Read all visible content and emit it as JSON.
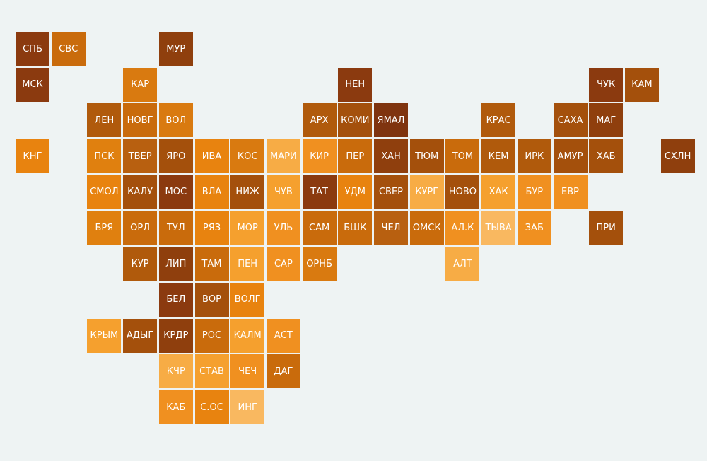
{
  "tiles": [
    {
      "label": "СПБ",
      "color": "#8b3a0f"
    },
    {
      "label": "СВС",
      "color": "#c96b0c"
    },
    {
      "label": "МУР",
      "color": "#8f3f0d"
    },
    {
      "label": "МСК",
      "color": "#8b3a0f"
    },
    {
      "label": "КАР",
      "color": "#d97a10"
    },
    {
      "label": "НЕН",
      "color": "#8b3a0f"
    },
    {
      "label": "ЧУК",
      "color": "#8b3a0f"
    },
    {
      "label": "КАМ",
      "color": "#a4500c"
    },
    {
      "label": "ЛЕН",
      "color": "#b05a0c"
    },
    {
      "label": "НОВГ",
      "color": "#c96b0c"
    },
    {
      "label": "ВОЛ",
      "color": "#d97a10"
    },
    {
      "label": "АРХ",
      "color": "#b05a0c"
    },
    {
      "label": "КОМИ",
      "color": "#a4500c"
    },
    {
      "label": "ЯМАЛ",
      "color": "#7f340f"
    },
    {
      "label": "КРАС",
      "color": "#b05a0c"
    },
    {
      "label": "САХА",
      "color": "#a4500c"
    },
    {
      "label": "МАГ",
      "color": "#8f3f0d"
    },
    {
      "label": "КНГ",
      "color": "#e8830f"
    },
    {
      "label": "ПСК",
      "color": "#e0800f"
    },
    {
      "label": "ТВЕР",
      "color": "#b86010"
    },
    {
      "label": "ЯРО",
      "color": "#a4500c"
    },
    {
      "label": "ИВА",
      "color": "#e8830f"
    },
    {
      "label": "КОС",
      "color": "#d97a10"
    },
    {
      "label": "МАРИ",
      "color": "#f7ac45"
    },
    {
      "label": "КИР",
      "color": "#f09020"
    },
    {
      "label": "ПЕР",
      "color": "#c96b0c"
    },
    {
      "label": "ХАН",
      "color": "#8f3f0d"
    },
    {
      "label": "ТЮМ",
      "color": "#a4500c"
    },
    {
      "label": "ТОМ",
      "color": "#c96b0c"
    },
    {
      "label": "КЕМ",
      "color": "#b05a0c"
    },
    {
      "label": "ИРК",
      "color": "#b05a0c"
    },
    {
      "label": "АМУР",
      "color": "#a4500c"
    },
    {
      "label": "ХАБ",
      "color": "#a4500c"
    },
    {
      "label": "СХЛН",
      "color": "#8f3f0d"
    },
    {
      "label": "СМОЛ",
      "color": "#e8830f"
    },
    {
      "label": "КАЛУ",
      "color": "#a4500c"
    },
    {
      "label": "МОС",
      "color": "#8b3a0f"
    },
    {
      "label": "ВЛА",
      "color": "#e8830f"
    },
    {
      "label": "НИЖ",
      "color": "#a4500c"
    },
    {
      "label": "ЧУВ",
      "color": "#f5a02e"
    },
    {
      "label": "ТАТ",
      "color": "#8b3a0f"
    },
    {
      "label": "УДМ",
      "color": "#e8830f"
    },
    {
      "label": "СВЕР",
      "color": "#a4500c"
    },
    {
      "label": "КУРГ",
      "color": "#f7ac45"
    },
    {
      "label": "НОВО",
      "color": "#a4500c"
    },
    {
      "label": "ХАК",
      "color": "#f5a02e"
    },
    {
      "label": "БУР",
      "color": "#f09020"
    },
    {
      "label": "ЕВР",
      "color": "#f09020"
    },
    {
      "label": "БРЯ",
      "color": "#e0800f"
    },
    {
      "label": "ОРЛ",
      "color": "#c96b0c"
    },
    {
      "label": "ТУЛ",
      "color": "#c96b0c"
    },
    {
      "label": "РЯЗ",
      "color": "#e8830f"
    },
    {
      "label": "МОР",
      "color": "#f5a02e"
    },
    {
      "label": "УЛЬ",
      "color": "#f09020"
    },
    {
      "label": "САМ",
      "color": "#c96b0c"
    },
    {
      "label": "БШК",
      "color": "#c96b0c"
    },
    {
      "label": "ЧЕЛ",
      "color": "#b86010"
    },
    {
      "label": "ОМСК",
      "color": "#c96b0c"
    },
    {
      "label": "АЛ.К",
      "color": "#f09020"
    },
    {
      "label": "ТЫВА",
      "color": "#f9b860"
    },
    {
      "label": "ЗАБ",
      "color": "#f09020"
    },
    {
      "label": "ПРИ",
      "color": "#a4500c"
    },
    {
      "label": "КУР",
      "color": "#b05a0c"
    },
    {
      "label": "ЛИП",
      "color": "#8f3f0d"
    },
    {
      "label": "ТАМ",
      "color": "#c96b0c"
    },
    {
      "label": "ПЕН",
      "color": "#f5a02e"
    },
    {
      "label": "САР",
      "color": "#f09020"
    },
    {
      "label": "ОРНБ",
      "color": "#d97a10"
    },
    {
      "label": "АЛТ",
      "color": "#f7ac45"
    },
    {
      "label": "БЕЛ",
      "color": "#8b3a0f"
    },
    {
      "label": "ВОР",
      "color": "#a4500c"
    },
    {
      "label": "ВОЛГ",
      "color": "#e8830f"
    },
    {
      "label": "КРЫМ",
      "color": "#f5a02e"
    },
    {
      "label": "АДЫГ",
      "color": "#a4500c"
    },
    {
      "label": "КРДР",
      "color": "#8f3f0d"
    },
    {
      "label": "РОС",
      "color": "#c96b0c"
    },
    {
      "label": "КАЛМ",
      "color": "#f5a02e"
    },
    {
      "label": "АСТ",
      "color": "#f09020"
    },
    {
      "label": "КЧР",
      "color": "#f7ac45"
    },
    {
      "label": "СТАВ",
      "color": "#f5a02e"
    },
    {
      "label": "ЧЕЧ",
      "color": "#f09020"
    },
    {
      "label": "ДАГ",
      "color": "#c96b0c"
    },
    {
      "label": "КАБ",
      "color": "#f09020"
    },
    {
      "label": "С.ОС",
      "color": "#e8830f"
    },
    {
      "label": "ИНГ",
      "color": "#f9b860"
    }
  ]
}
